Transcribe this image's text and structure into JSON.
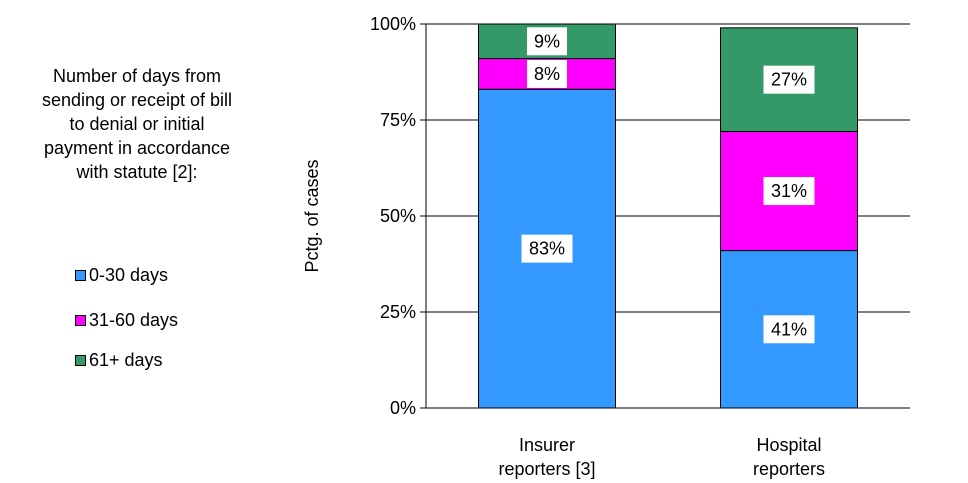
{
  "chart_data": {
    "type": "bar",
    "stacked": true,
    "categories": [
      "Insurer\nreporters [3]",
      "Hospital\nreporters"
    ],
    "series": [
      {
        "name": "0-30 days",
        "values": [
          83,
          41
        ],
        "labels": [
          "83%",
          "41%"
        ],
        "color": "#3399FF"
      },
      {
        "name": "31-60 days",
        "values": [
          8,
          31
        ],
        "labels": [
          "8%",
          "31%"
        ],
        "color": "#FF00FF"
      },
      {
        "name": "61+ days",
        "values": [
          9,
          27
        ],
        "labels": [
          "9%",
          "27%"
        ],
        "color": "#339966"
      }
    ],
    "ylabel": "Pctg. of cases",
    "ylim": [
      0,
      100
    ],
    "yticks": [
      "0%",
      "25%",
      "50%",
      "75%",
      "100%"
    ],
    "grid": true,
    "legend": {
      "title": "Number of days from\nsending or receipt of bill\nto denial or initial\npayment in accordance\nwith statute [2]:",
      "position": "left"
    }
  }
}
